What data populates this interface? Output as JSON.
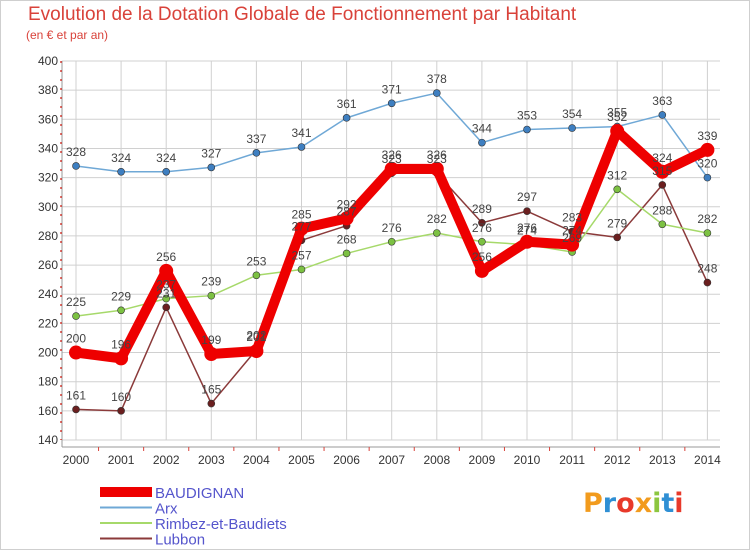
{
  "header": {
    "title": "Evolution de la Dotation Globale de Fonctionnement par Habitant",
    "subtitle": "(en € et par an)"
  },
  "logo": {
    "text": "Proxiti",
    "colors": [
      "#f29b1d",
      "#2f8fd4",
      "#e8392a",
      "#f29b1d",
      "#8cc63f",
      "#2f8fd4",
      "#e8392a"
    ]
  },
  "colors": {
    "title": "#d9423a",
    "grid": "#d0d0d0",
    "axis_dash": "#d9423a",
    "legend_text": "#5555cc"
  },
  "chart_data": {
    "type": "line",
    "x": [
      "2000",
      "2001",
      "2002",
      "2003",
      "2004",
      "2005",
      "2006",
      "2007",
      "2008",
      "2009",
      "2010",
      "2011",
      "2012",
      "2013",
      "2014"
    ],
    "ylim": [
      140,
      400
    ],
    "yticks": [
      "140",
      "160",
      "180",
      "200",
      "220",
      "240",
      "260",
      "280",
      "300",
      "320",
      "340",
      "360",
      "380",
      "400"
    ],
    "grid": true,
    "legend_placement": "bottom-left",
    "series": [
      {
        "name": "BAUDIGNAN",
        "color": "#ee0000",
        "marker": "#ee0000",
        "emphasis": true,
        "values": [
          200,
          196,
          256,
          199,
          201,
          285,
          292,
          326,
          326,
          256,
          276,
          274,
          352,
          324,
          339
        ],
        "labels": [
          "200",
          "196",
          "256",
          "199",
          "201",
          "285",
          "292",
          "326",
          "326",
          "256",
          "276",
          "274",
          "352",
          "324",
          "339"
        ]
      },
      {
        "name": "Arx",
        "color": "#6fa8d6",
        "marker": "#3e7fc1",
        "values": [
          328,
          324,
          324,
          327,
          337,
          341,
          361,
          371,
          378,
          344,
          353,
          354,
          355,
          363,
          320
        ],
        "labels": [
          "328",
          "324",
          "324",
          "327",
          "337",
          "341",
          "361",
          "371",
          "378",
          "344",
          "353",
          "354",
          "355",
          "363",
          "320"
        ]
      },
      {
        "name": "Rimbez-et-Baudiets",
        "color": "#a6d96a",
        "marker": "#7cc142",
        "values": [
          225,
          229,
          237,
          239,
          253,
          257,
          268,
          276,
          282,
          276,
          274,
          269,
          312,
          288,
          282
        ],
        "labels": [
          "225",
          "229",
          "237",
          "239",
          "253",
          "257",
          "268",
          "276",
          "282",
          "276",
          "274",
          "269",
          "312",
          "288",
          "282"
        ]
      },
      {
        "name": "Lubbon",
        "color": "#8b3a3a",
        "marker": "#6b1f1f",
        "values": [
          161,
          160,
          231,
          165,
          202,
          277,
          287,
          323,
          323,
          289,
          297,
          283,
          279,
          315,
          248
        ],
        "labels": [
          "161",
          "160",
          "231",
          "165",
          "202",
          "277",
          "287",
          "323",
          "323",
          "289",
          "297",
          "283",
          "279",
          "315",
          "248"
        ]
      }
    ]
  }
}
